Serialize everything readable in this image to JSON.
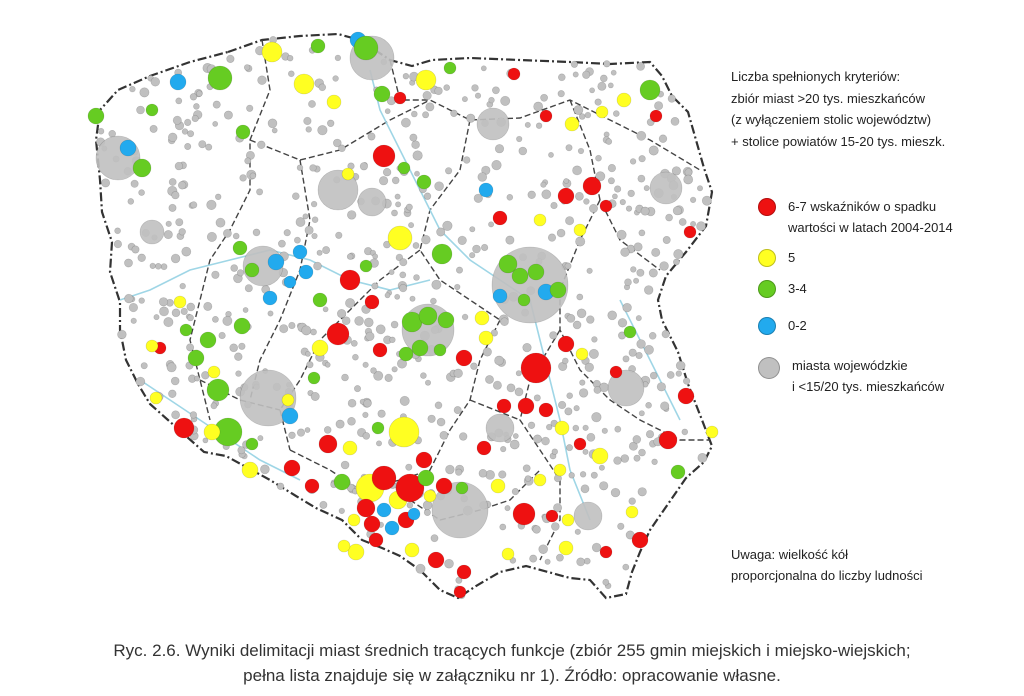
{
  "legend": {
    "title_lines": [
      "Liczba spełnionych kryteriów:",
      "zbiór miast >20 tys. mieszkańców",
      "(z wyłączeniem stolic województw)",
      "+ stolice powiatów 15-20 tys. mieszk."
    ],
    "items": [
      {
        "color": "#ee1111",
        "lines": [
          "6-7 wskaźników o spadku",
          "wartości w latach 2004-2014"
        ]
      },
      {
        "color": "#ffff22",
        "lines": [
          "5"
        ]
      },
      {
        "color": "#66cc22",
        "lines": [
          "3-4"
        ]
      },
      {
        "color": "#22aaee",
        "lines": [
          "0-2"
        ]
      },
      {
        "color": "#c0c0c0",
        "lines": [
          "miasta wojewódzkie",
          "i <15/20 tys. mieszkańców"
        ]
      }
    ]
  },
  "note_lines": [
    "Uwaga: wielkość kół",
    "proporcjonalna do liczby ludności"
  ],
  "caption_lines": [
    "Ryc. 2.6. Wyniki delimitacji miast średnich tracących funkcje (zbiór 255 gmin miejskich i miejsko-wiejskich;",
    "pełna lista znajduje się w załączniku nr 1). Źródło: opracowanie własne."
  ],
  "colors": {
    "red": "#ee1111",
    "yellow": "#ffff22",
    "green": "#66cc22",
    "blue": "#22aaee",
    "grey": "#c0c0c0",
    "border": "#333333",
    "river": "#9fd6e6"
  }
}
